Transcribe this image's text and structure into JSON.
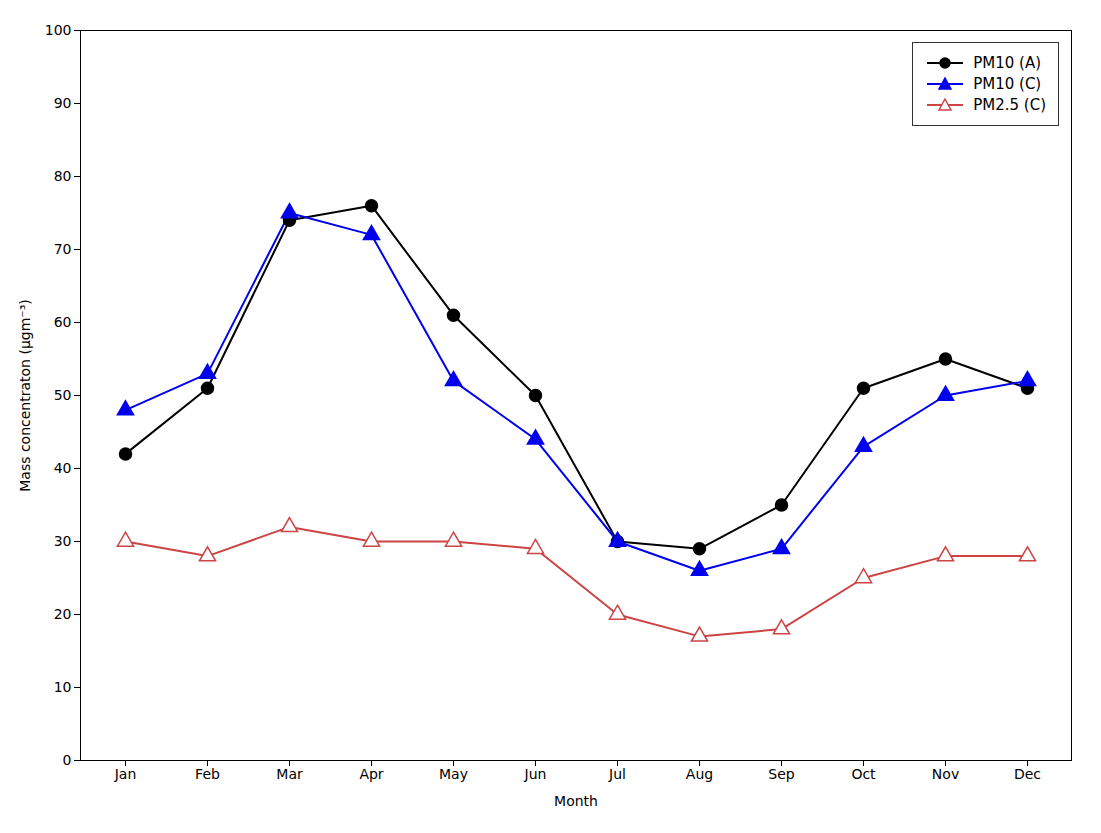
{
  "chart_data": {
    "type": "line",
    "xlabel": "Month",
    "ylabel": "Mass concentraton (μgm⁻³)",
    "categories": [
      "Jan",
      "Feb",
      "Mar",
      "Apr",
      "May",
      "Jun",
      "Jul",
      "Aug",
      "Sep",
      "Oct",
      "Nov",
      "Dec"
    ],
    "series": [
      {
        "name": "PM10 (A)",
        "color": "#000000",
        "marker": "circle",
        "values": [
          42,
          51,
          74,
          76,
          61,
          50,
          30,
          29,
          35,
          51,
          55,
          51
        ]
      },
      {
        "name": "PM10 (C)",
        "color": "#0000ee",
        "marker": "triangle",
        "values": [
          48,
          53,
          75,
          72,
          52,
          44,
          30,
          26,
          29,
          43,
          50,
          52
        ]
      },
      {
        "name": "PM2.5 (C)",
        "color": "#cc4444",
        "marker": "triangle-open",
        "values": [
          30,
          28,
          32,
          30,
          30,
          29,
          20,
          17,
          18,
          25,
          28,
          28
        ]
      }
    ],
    "ylim": [
      0,
      100
    ],
    "yticks": [
      0,
      10,
      20,
      30,
      40,
      50,
      60,
      70,
      80,
      90,
      100
    ],
    "grid": false,
    "legend": "upper right"
  }
}
